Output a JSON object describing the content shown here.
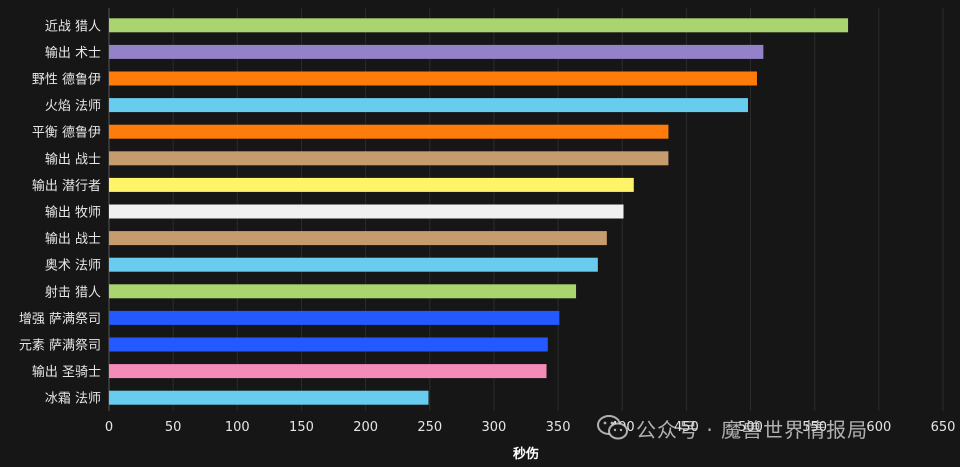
{
  "chart_data": {
    "type": "bar",
    "orientation": "horizontal",
    "title": "",
    "xlabel": "秒伤",
    "ylabel": "",
    "xlim": [
      0,
      650
    ],
    "xticks": [
      0,
      50,
      100,
      150,
      200,
      250,
      300,
      350,
      400,
      450,
      500,
      550,
      600,
      650
    ],
    "grid": true,
    "categories": [
      "近战 猎人",
      "输出 术士",
      "野性 德鲁伊",
      "火焰 法师",
      "平衡 德鲁伊",
      "输出 战士",
      "输出 潜行者",
      "输出 牧师",
      "输出 战士",
      "奥术 法师",
      "射击 猎人",
      "增强 萨满祭司",
      "元素 萨满祭司",
      "输出 圣骑士",
      "冰霜 法师"
    ],
    "values": [
      576,
      510,
      505,
      498,
      436,
      436,
      409,
      401,
      388,
      381,
      364,
      351,
      342,
      341,
      249
    ],
    "colors": [
      "#a9d46f",
      "#9482c9",
      "#ff7c0a",
      "#68ccef",
      "#ff7c0a",
      "#c69b6d",
      "#fff468",
      "#f0f0f0",
      "#c69b6d",
      "#68ccef",
      "#a9d46f",
      "#2359ff",
      "#2359ff",
      "#f48cba",
      "#68ccef"
    ]
  },
  "watermark": {
    "text": "公众号 · 魔兽世界情报局",
    "icon": "wechat-icon"
  }
}
